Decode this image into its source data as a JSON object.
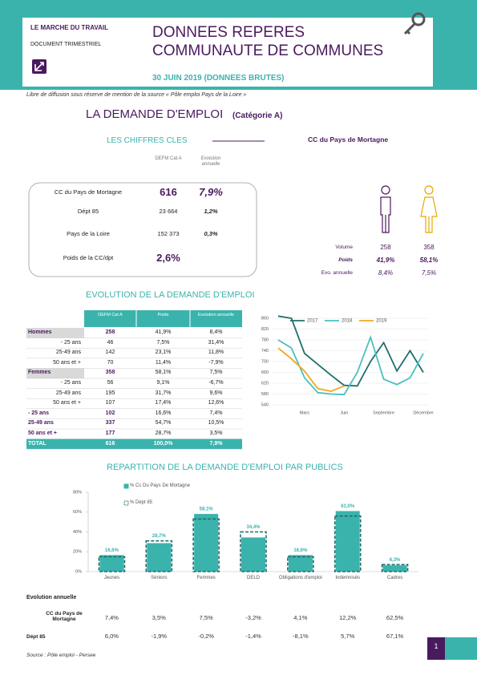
{
  "header": {
    "kicker": "LE MARCHE DU TRAVAIL",
    "doc_type": "DOCUMENT TRIMESTRIEL",
    "title_line1": "DONNEES REPERES",
    "title_line2": "COMMUNAUTE DE COMMUNES",
    "date": "30 JUIN 2019 (DONNEES BRUTES)"
  },
  "notice": "Libre de diffusion sous réserve de mention de la source « Pôle emploi Pays de la Loire »",
  "section": {
    "title": "LA DEMANDE D'EMPLOI",
    "category": "(Catégorie A)"
  },
  "key_figures": {
    "title": "LES CHIFFRES CLES",
    "columns": [
      "DEFM Cat A",
      "Evolution annuelle"
    ],
    "rows": [
      [
        "CC du Pays de Mortagne",
        "616",
        "7,9%"
      ],
      [
        "Dépt 85",
        "23 664",
        "1,2%"
      ],
      [
        "Pays de la Loire",
        "152 373",
        "0,3%"
      ],
      [
        "Poids de la CC/dpt",
        "2,6%"
      ]
    ]
  },
  "gender": {
    "title": "CC du Pays de Mortagne",
    "rows": [
      [
        "Volume",
        "258",
        "358"
      ],
      [
        "Poids",
        "41,9%",
        "58,1%"
      ],
      [
        "Evo. annuelle",
        "8,4%",
        "7,5%"
      ]
    ]
  },
  "evolution_table": {
    "title": "EVOLUTION DE LA DEMANDE D'EMPLOI",
    "columns": [
      "DEFM Cat A",
      "Poids",
      "Evolution annuelle"
    ],
    "rows": [
      [
        "Hommes",
        "258",
        "41,9%",
        "8,4%"
      ],
      [
        "- 25 ans",
        "46",
        "7,5%",
        "31,4%"
      ],
      [
        "25-49 ans",
        "142",
        "23,1%",
        "11,8%"
      ],
      [
        "50 ans et +",
        "70",
        "11,4%",
        "-7,9%"
      ],
      [
        "Femmes",
        "358",
        "58,1%",
        "7,5%"
      ],
      [
        "- 25 ans",
        "56",
        "9,1%",
        "-6,7%"
      ],
      [
        "25-49 ans",
        "195",
        "31,7%",
        "9,6%"
      ],
      [
        "50 ans et +",
        "107",
        "17,4%",
        "12,6%"
      ],
      [
        "- 25 ans",
        "102",
        "16,6%",
        "7,4%"
      ],
      [
        "25-49 ans",
        "337",
        "54,7%",
        "10,5%"
      ],
      [
        "50 ans et +",
        "177",
        "28,7%",
        "3,5%"
      ],
      [
        "TOTAL",
        "616",
        "100,0%",
        "7,9%"
      ]
    ]
  },
  "chart_data": [
    {
      "type": "line",
      "categories": [
        null,
        null,
        "Mars",
        null,
        null,
        "Juin",
        null,
        null,
        "Septembre",
        null,
        null,
        "Décembre"
      ],
      "series": [
        {
          "name": "2017",
          "color": "#1f6f6b",
          "values": [
            868,
            860,
            730,
            690,
            650,
            612,
            610,
            700,
            770,
            665,
            740,
            660
          ]
        },
        {
          "name": "2018",
          "color": "#49c1bb",
          "values": [
            780,
            750,
            640,
            585,
            580,
            578,
            660,
            790,
            635,
            615,
            640,
            730
          ]
        },
        {
          "name": "2019",
          "color": "#f0a820",
          "values": [
            750,
            710,
            665,
            600,
            590,
            610,
            null,
            null,
            null,
            null,
            null,
            null
          ]
        }
      ],
      "ylim": [
        540,
        860
      ],
      "yticks": [
        540,
        580,
        620,
        660,
        700,
        740,
        780,
        820,
        860
      ],
      "grid": true,
      "legend": "top"
    },
    {
      "type": "bar",
      "title": "REPARTITION DE LA DEMANDE D'EMPLOI PAR PUBLICS",
      "categories": [
        "Jeunes",
        "Séniors",
        "Femmes",
        "DELD",
        "Obligations d'emploi",
        "Indemnisés",
        "Cadres"
      ],
      "series": [
        {
          "name": "% Cc Du Pays De Mortagne",
          "color": "#3bb3ad",
          "values": [
            16.6,
            28.7,
            58.1,
            34.4,
            16.6,
            61.0,
            6.3
          ],
          "value_labels": [
            "16,6%",
            "28,7%",
            "58,1%",
            "34,4%",
            "16,6%",
            "61,0%",
            "6,3%"
          ]
        },
        {
          "name": "% Dépt 85",
          "color": "#1f6f6b",
          "style": "dashed",
          "values": [
            15,
            31,
            53,
            40,
            15,
            56,
            7
          ]
        }
      ],
      "ylim": [
        0,
        80
      ],
      "yticks": [
        {
          "value": 0,
          "label": "0%"
        },
        {
          "value": 20,
          "label": "20%"
        },
        {
          "value": 40,
          "label": "40%"
        },
        {
          "value": 60,
          "label": "60%"
        },
        {
          "value": 80,
          "label": "80%"
        }
      ]
    }
  ],
  "annual_table": {
    "title": "Evolution annuelle",
    "rows": [
      {
        "label": "CC du Pays de Mortagne",
        "values": [
          "7,4%",
          "3,5%",
          "7,5%",
          "-3,2%",
          "4,1%",
          "12,2%",
          "62,5%"
        ]
      },
      {
        "label": "Dépt 85",
        "values": [
          "6,0%",
          "-1,9%",
          "-0,2%",
          "-1,4%",
          "-8,1%",
          "5,7%",
          "67,1%"
        ]
      }
    ]
  },
  "footer": {
    "source": "Source : Pôle emploi - Persee",
    "page": "1"
  }
}
